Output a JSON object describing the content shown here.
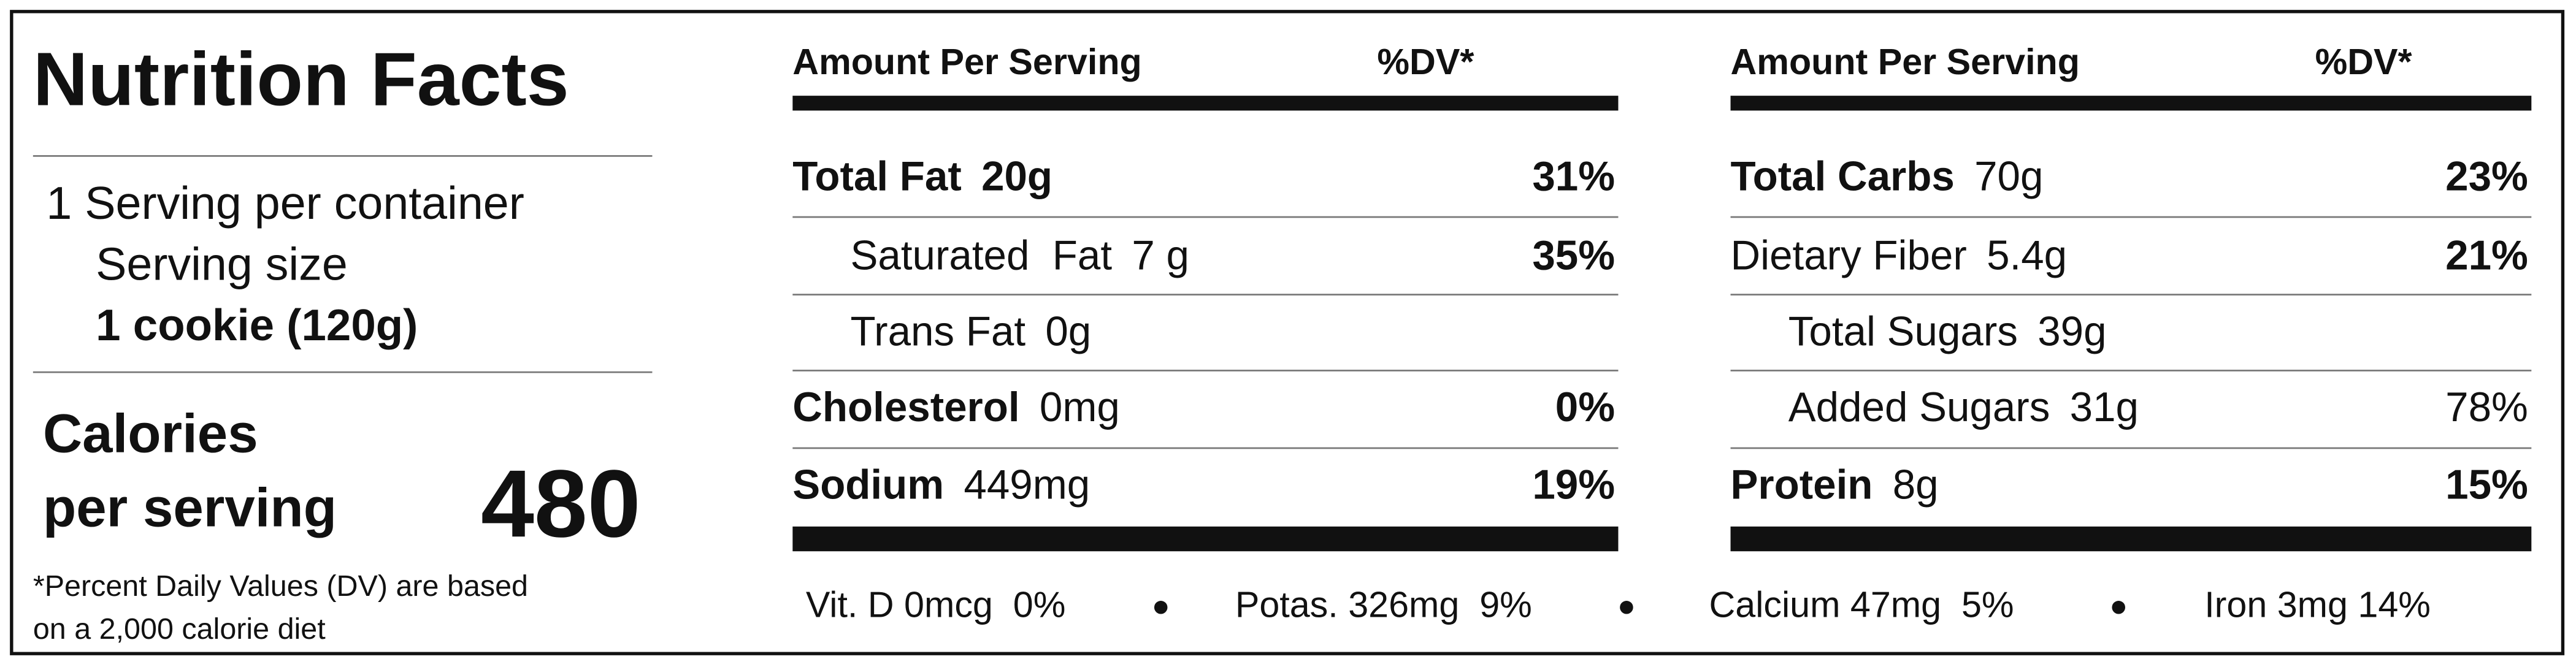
{
  "title": "Nutrition Facts",
  "servings": "1 Serving per container",
  "serving_size_label": "Serving size",
  "serving_size": "1 cookie (120g)",
  "calories": {
    "label_lines": [
      "Calories",
      "per serving"
    ],
    "value": 480
  },
  "footnote": "*Percent Daily Values (DV) are based on a 2,000 calorie diet",
  "columns": [
    {
      "header": {
        "amount": "Amount Per Serving",
        "dv": "%DV*"
      },
      "rows": [
        {
          "name": "Total Fat",
          "amount": "20g",
          "dv": "31%"
        },
        {
          "name": "Saturated  Fat",
          "amount": "7 g",
          "dv": "35%"
        },
        {
          "name": "Trans Fat",
          "amount": "0g"
        },
        {
          "name": "Cholesterol",
          "amount": "0mg",
          "dv": "0%"
        },
        {
          "name": "Sodium",
          "amount": "449mg",
          "dv": "19%"
        }
      ]
    },
    {
      "header": {
        "amount": "Amount Per Serving",
        "dv": "%DV*"
      },
      "rows": [
        {
          "name": "Total Carbs",
          "amount": "70g",
          "dv": "23%"
        },
        {
          "name": "Dietary Fiber",
          "amount": "5.4g",
          "dv": "21%"
        },
        {
          "name": "Total Sugars",
          "amount": "39g"
        },
        {
          "name": "Added Sugars",
          "amount": "31g",
          "dv": "78%"
        },
        {
          "name": "Protein",
          "amount": "8g",
          "dv": "15%"
        }
      ]
    }
  ],
  "micronutrients": [
    "Vit. D 0mcg  0%",
    "Potas. 326mg  9%",
    "Calcium 47mg  5%",
    "Iron 3mg 14%"
  ]
}
